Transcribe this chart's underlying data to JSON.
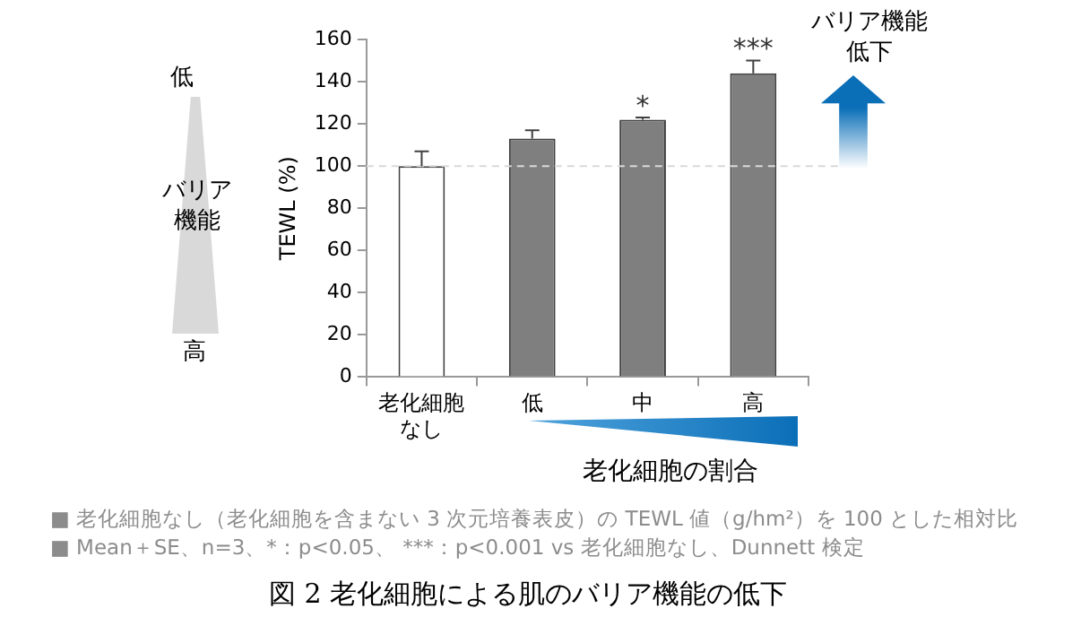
{
  "chart_data": {
    "type": "bar",
    "title": "図 2 老化細胞による肌のバリア機能の低下",
    "ylabel": "TEWL (%)",
    "xlabel": "老化細胞の割合",
    "categories": [
      "老化細胞なし",
      "低",
      "中",
      "高"
    ],
    "values": [
      100,
      113,
      122,
      144
    ],
    "errors": [
      7,
      4,
      1,
      6
    ],
    "colors": [
      "#ffffff",
      "#7f7f7f",
      "#7f7f7f",
      "#7f7f7f"
    ],
    "ylim": [
      0,
      160
    ],
    "yticks": [
      0,
      20,
      40,
      60,
      80,
      100,
      120,
      140,
      160
    ],
    "grid": false,
    "legend": false,
    "ref_lines": [
      {
        "axis": "y",
        "value": 100,
        "color": "#d9d9d9",
        "line_style": "dashed"
      }
    ],
    "annotations": [
      {
        "text": "*",
        "x": "中",
        "y": 122
      },
      {
        "text": "***",
        "x": "高",
        "y": 144
      },
      "低",
      "バリア機能",
      "高",
      "バリア機能低下",
      "■ 老化細胞なし（老化細胞を含まない 3 次元培養表皮）の TEWL 値（g/hm²）を 100 とした相対比",
      "■ Mean＋SE、n=3、*：p<0.05、 ***：p<0.001 vs 老化細胞なし、Dunnett 検定"
    ]
  }
}
